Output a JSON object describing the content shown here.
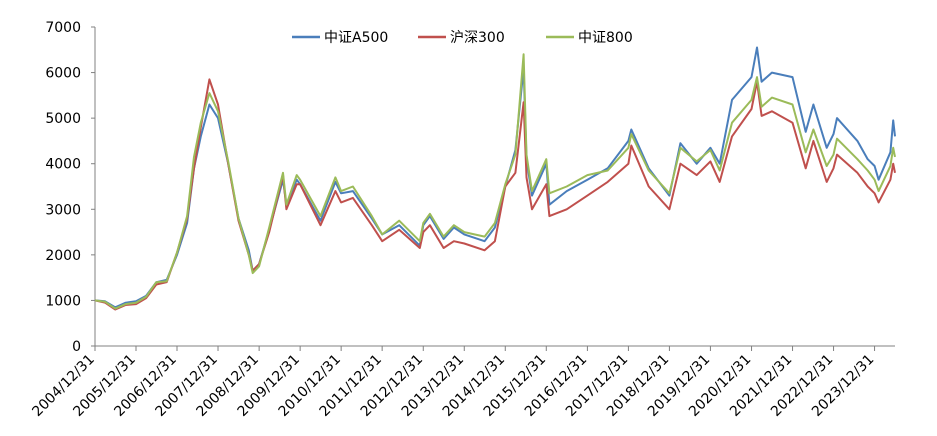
{
  "chart_data": {
    "type": "line",
    "title": "",
    "xlabel": "",
    "ylabel": "",
    "ylim": [
      0,
      7000
    ],
    "yticks": [
      0,
      1000,
      2000,
      3000,
      4000,
      5000,
      6000,
      7000
    ],
    "xticks": [
      "2004/12/31",
      "2005/12/31",
      "2006/12/31",
      "2007/12/31",
      "2008/12/31",
      "2009/12/31",
      "2010/12/31",
      "2011/12/31",
      "2012/12/31",
      "2013/12/31",
      "2014/12/31",
      "2015/12/31",
      "2016/12/31",
      "2017/12/31",
      "2018/12/31",
      "2019/12/31",
      "2020/12/31",
      "2021/12/31",
      "2022/12/31",
      "2023/12/31"
    ],
    "xlim": [
      "2004/12/31",
      "2024/06/30"
    ],
    "grid": false,
    "legend_position": "top-center",
    "series": [
      {
        "name": "中证A500",
        "color": "#4A7EBB",
        "points": [
          [
            "2004/12/31",
            1000
          ],
          [
            "2005/03/31",
            980
          ],
          [
            "2005/06/30",
            850
          ],
          [
            "2005/09/30",
            950
          ],
          [
            "2005/12/31",
            980
          ],
          [
            "2006/03/31",
            1100
          ],
          [
            "2006/06/30",
            1400
          ],
          [
            "2006/09/30",
            1450
          ],
          [
            "2006/12/31",
            2000
          ],
          [
            "2007/03/31",
            2700
          ],
          [
            "2007/05/31",
            3900
          ],
          [
            "2007/07/31",
            4600
          ],
          [
            "2007/10/15",
            5300
          ],
          [
            "2007/12/31",
            5000
          ],
          [
            "2008/03/31",
            4000
          ],
          [
            "2008/06/30",
            2800
          ],
          [
            "2008/09/30",
            2100
          ],
          [
            "2008/11/04",
            1650
          ],
          [
            "2008/12/31",
            1800
          ],
          [
            "2009/03/31",
            2550
          ],
          [
            "2009/07/31",
            3650
          ],
          [
            "2009/08/31",
            3100
          ],
          [
            "2009/11/30",
            3650
          ],
          [
            "2009/12/31",
            3550
          ],
          [
            "2010/06/30",
            2750
          ],
          [
            "2010/11/10",
            3600
          ],
          [
            "2010/12/31",
            3350
          ],
          [
            "2011/04/15",
            3400
          ],
          [
            "2011/09/30",
            2800
          ],
          [
            "2011/12/31",
            2450
          ],
          [
            "2012/05/31",
            2650
          ],
          [
            "2012/11/30",
            2200
          ],
          [
            "2012/12/31",
            2650
          ],
          [
            "2013/02/28",
            2850
          ],
          [
            "2013/06/30",
            2350
          ],
          [
            "2013/09/30",
            2600
          ],
          [
            "2013/12/31",
            2450
          ],
          [
            "2014/06/30",
            2300
          ],
          [
            "2014/09/30",
            2600
          ],
          [
            "2014/12/31",
            3500
          ],
          [
            "2015/03/31",
            4300
          ],
          [
            "2015/06/12",
            6100
          ],
          [
            "2015/07/08",
            4100
          ],
          [
            "2015/08/26",
            3300
          ],
          [
            "2015/12/31",
            4000
          ],
          [
            "2016/01/28",
            3100
          ],
          [
            "2016/06/30",
            3400
          ],
          [
            "2016/12/31",
            3650
          ],
          [
            "2017/06/30",
            3900
          ],
          [
            "2017/12/31",
            4500
          ],
          [
            "2018/01/26",
            4750
          ],
          [
            "2018/06/30",
            3900
          ],
          [
            "2018/12/31",
            3300
          ],
          [
            "2019/04/08",
            4450
          ],
          [
            "2019/08/31",
            4000
          ],
          [
            "2019/12/31",
            4350
          ],
          [
            "2020/03/23",
            4000
          ],
          [
            "2020/07/10",
            5400
          ],
          [
            "2020/12/31",
            5900
          ],
          [
            "2021/02/18",
            6550
          ],
          [
            "2021/03/31",
            5800
          ],
          [
            "2021/06/30",
            6000
          ],
          [
            "2021/12/31",
            5900
          ],
          [
            "2022/04/27",
            4700
          ],
          [
            "2022/07/05",
            5300
          ],
          [
            "2022/10/31",
            4350
          ],
          [
            "2022/12/31",
            4650
          ],
          [
            "2023/01/31",
            5000
          ],
          [
            "2023/07/31",
            4500
          ],
          [
            "2023/10/31",
            4100
          ],
          [
            "2023/12/31",
            3950
          ],
          [
            "2024/02/05",
            3650
          ],
          [
            "2024/05/20",
            4250
          ],
          [
            "2024/06/14",
            4950
          ],
          [
            "2024/06/30",
            4600
          ]
        ]
      },
      {
        "name": "沪深300",
        "color": "#C0504D",
        "points": [
          [
            "2004/12/31",
            1000
          ],
          [
            "2005/03/31",
            950
          ],
          [
            "2005/06/30",
            800
          ],
          [
            "2005/09/30",
            900
          ],
          [
            "2005/12/31",
            920
          ],
          [
            "2006/03/31",
            1050
          ],
          [
            "2006/06/30",
            1350
          ],
          [
            "2006/09/30",
            1400
          ],
          [
            "2006/12/31",
            2050
          ],
          [
            "2007/03/31",
            2800
          ],
          [
            "2007/05/31",
            3900
          ],
          [
            "2007/07/31",
            4800
          ],
          [
            "2007/10/15",
            5850
          ],
          [
            "2007/12/31",
            5300
          ],
          [
            "2008/03/31",
            4000
          ],
          [
            "2008/06/30",
            2750
          ],
          [
            "2008/09/30",
            2000
          ],
          [
            "2008/11/04",
            1650
          ],
          [
            "2008/12/31",
            1800
          ],
          [
            "2009/03/31",
            2500
          ],
          [
            "2009/07/31",
            3750
          ],
          [
            "2009/08/31",
            3000
          ],
          [
            "2009/11/30",
            3550
          ],
          [
            "2009/12/31",
            3550
          ],
          [
            "2010/06/30",
            2650
          ],
          [
            "2010/11/10",
            3400
          ],
          [
            "2010/12/31",
            3150
          ],
          [
            "2011/04/15",
            3250
          ],
          [
            "2011/09/30",
            2650
          ],
          [
            "2011/12/31",
            2300
          ],
          [
            "2012/05/31",
            2550
          ],
          [
            "2012/11/30",
            2150
          ],
          [
            "2012/12/31",
            2500
          ],
          [
            "2013/02/28",
            2650
          ],
          [
            "2013/06/30",
            2150
          ],
          [
            "2013/09/30",
            2300
          ],
          [
            "2013/12/31",
            2250
          ],
          [
            "2014/06/30",
            2100
          ],
          [
            "2014/09/30",
            2300
          ],
          [
            "2014/12/31",
            3500
          ],
          [
            "2015/03/31",
            3800
          ],
          [
            "2015/06/12",
            5350
          ],
          [
            "2015/07/08",
            3700
          ],
          [
            "2015/08/26",
            3000
          ],
          [
            "2015/12/31",
            3550
          ],
          [
            "2016/01/28",
            2850
          ],
          [
            "2016/06/30",
            3000
          ],
          [
            "2016/12/31",
            3300
          ],
          [
            "2017/06/30",
            3600
          ],
          [
            "2017/12/31",
            4000
          ],
          [
            "2018/01/26",
            4400
          ],
          [
            "2018/06/30",
            3500
          ],
          [
            "2018/12/31",
            3000
          ],
          [
            "2019/04/08",
            4000
          ],
          [
            "2019/08/31",
            3750
          ],
          [
            "2019/12/31",
            4050
          ],
          [
            "2020/03/23",
            3600
          ],
          [
            "2020/07/10",
            4600
          ],
          [
            "2020/12/31",
            5200
          ],
          [
            "2021/02/18",
            5800
          ],
          [
            "2021/03/31",
            5050
          ],
          [
            "2021/06/30",
            5150
          ],
          [
            "2021/12/31",
            4900
          ],
          [
            "2022/04/27",
            3900
          ],
          [
            "2022/07/05",
            4500
          ],
          [
            "2022/10/31",
            3600
          ],
          [
            "2022/12/31",
            3900
          ],
          [
            "2023/01/31",
            4200
          ],
          [
            "2023/07/31",
            3800
          ],
          [
            "2023/10/31",
            3500
          ],
          [
            "2023/12/31",
            3350
          ],
          [
            "2024/02/05",
            3150
          ],
          [
            "2024/05/20",
            3650
          ],
          [
            "2024/06/14",
            4000
          ],
          [
            "2024/06/30",
            3800
          ]
        ]
      },
      {
        "name": "中证800",
        "color": "#9BBB59",
        "points": [
          [
            "2004/12/31",
            1000
          ],
          [
            "2005/03/31",
            970
          ],
          [
            "2005/06/30",
            820
          ],
          [
            "2005/09/30",
            920
          ],
          [
            "2005/12/31",
            950
          ],
          [
            "2006/03/31",
            1080
          ],
          [
            "2006/06/30",
            1400
          ],
          [
            "2006/09/30",
            1420
          ],
          [
            "2006/12/31",
            2050
          ],
          [
            "2007/03/31",
            2850
          ],
          [
            "2007/05/31",
            4150
          ],
          [
            "2007/07/31",
            4900
          ],
          [
            "2007/10/15",
            5550
          ],
          [
            "2007/12/31",
            5150
          ],
          [
            "2008/03/31",
            4050
          ],
          [
            "2008/06/30",
            2800
          ],
          [
            "2008/09/30",
            2000
          ],
          [
            "2008/11/04",
            1600
          ],
          [
            "2008/12/31",
            1750
          ],
          [
            "2009/03/31",
            2600
          ],
          [
            "2009/07/31",
            3800
          ],
          [
            "2009/08/31",
            3100
          ],
          [
            "2009/11/30",
            3750
          ],
          [
            "2009/12/31",
            3650
          ],
          [
            "2010/06/30",
            2850
          ],
          [
            "2010/11/10",
            3700
          ],
          [
            "2010/12/31",
            3400
          ],
          [
            "2011/04/15",
            3500
          ],
          [
            "2011/09/30",
            2850
          ],
          [
            "2011/12/31",
            2450
          ],
          [
            "2012/05/31",
            2750
          ],
          [
            "2012/11/30",
            2300
          ],
          [
            "2012/12/31",
            2700
          ],
          [
            "2013/02/28",
            2900
          ],
          [
            "2013/06/30",
            2400
          ],
          [
            "2013/09/30",
            2650
          ],
          [
            "2013/12/31",
            2500
          ],
          [
            "2014/06/30",
            2400
          ],
          [
            "2014/09/30",
            2700
          ],
          [
            "2014/12/31",
            3550
          ],
          [
            "2015/03/31",
            4200
          ],
          [
            "2015/06/12",
            6400
          ],
          [
            "2015/07/08",
            4200
          ],
          [
            "2015/08/26",
            3400
          ],
          [
            "2015/12/31",
            4100
          ],
          [
            "2016/01/28",
            3350
          ],
          [
            "2016/06/30",
            3500
          ],
          [
            "2016/12/31",
            3750
          ],
          [
            "2017/06/30",
            3850
          ],
          [
            "2017/12/31",
            4350
          ],
          [
            "2018/01/26",
            4650
          ],
          [
            "2018/06/30",
            3850
          ],
          [
            "2018/12/31",
            3350
          ],
          [
            "2019/04/08",
            4350
          ],
          [
            "2019/08/31",
            4050
          ],
          [
            "2019/12/31",
            4300
          ],
          [
            "2020/03/23",
            3850
          ],
          [
            "2020/07/10",
            4900
          ],
          [
            "2020/12/31",
            5400
          ],
          [
            "2021/02/18",
            5900
          ],
          [
            "2021/03/31",
            5250
          ],
          [
            "2021/06/30",
            5450
          ],
          [
            "2021/12/31",
            5300
          ],
          [
            "2022/04/27",
            4250
          ],
          [
            "2022/07/05",
            4750
          ],
          [
            "2022/10/31",
            3950
          ],
          [
            "2022/12/31",
            4200
          ],
          [
            "2023/01/31",
            4550
          ],
          [
            "2023/07/31",
            4100
          ],
          [
            "2023/10/31",
            3850
          ],
          [
            "2023/12/31",
            3650
          ],
          [
            "2024/02/05",
            3400
          ],
          [
            "2024/05/20",
            3950
          ],
          [
            "2024/06/14",
            4350
          ],
          [
            "2024/06/30",
            4150
          ]
        ]
      }
    ]
  }
}
